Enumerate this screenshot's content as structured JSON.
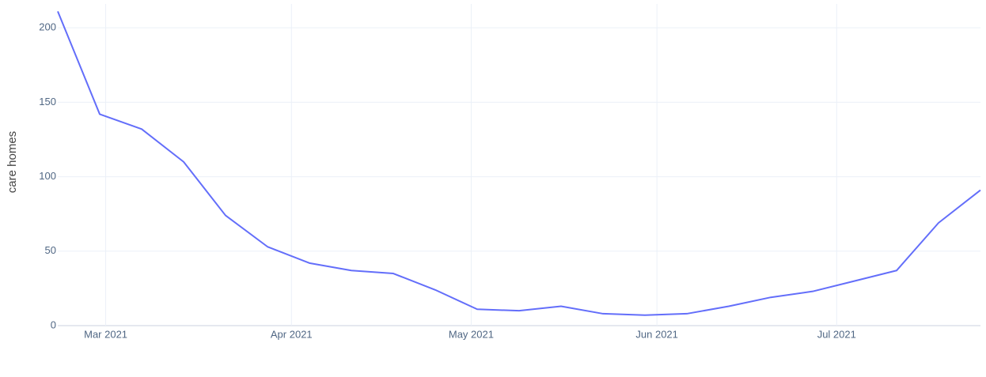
{
  "chart_data": {
    "type": "line",
    "y_label": "care homes",
    "x": [
      "2021-02-21",
      "2021-02-28",
      "2021-03-07",
      "2021-03-14",
      "2021-03-21",
      "2021-03-28",
      "2021-04-04",
      "2021-04-11",
      "2021-04-18",
      "2021-04-25",
      "2021-05-02",
      "2021-05-09",
      "2021-05-16",
      "2021-05-23",
      "2021-05-30",
      "2021-06-06",
      "2021-06-13",
      "2021-06-20",
      "2021-06-27",
      "2021-07-04",
      "2021-07-11",
      "2021-07-18",
      "2021-07-25"
    ],
    "series": [
      {
        "name": "care homes",
        "color": "#636efa",
        "values": [
          211,
          142,
          132,
          110,
          74,
          53,
          42,
          37,
          35,
          24,
          11,
          10,
          13,
          8,
          7,
          8,
          13,
          19,
          23,
          30,
          37,
          69,
          91
        ]
      }
    ],
    "xlim": [
      "2021-02-21",
      "2021-07-25"
    ],
    "xticks": [
      {
        "value": "2021-03-01",
        "label": "Mar 2021"
      },
      {
        "value": "2021-04-01",
        "label": "Apr 2021"
      },
      {
        "value": "2021-05-01",
        "label": "May 2021"
      },
      {
        "value": "2021-06-01",
        "label": "Jun 2021"
      },
      {
        "value": "2021-07-01",
        "label": "Jul 2021"
      }
    ],
    "ylim": [
      0,
      216
    ],
    "yticks": [
      0,
      50,
      100,
      150,
      200
    ],
    "grid": true
  }
}
